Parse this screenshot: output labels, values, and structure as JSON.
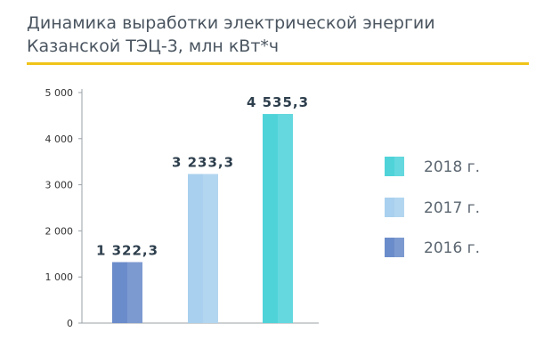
{
  "chart_data": {
    "type": "bar",
    "title": "Динамика выработки электрической энергии Казанской ТЭЦ-3, млн кВт*ч",
    "title_lines": [
      "Динамика выработки электрической энергии",
      "Казанской ТЭЦ-3, млн кВт*ч"
    ],
    "categories": [
      "2016 г.",
      "2017 г.",
      "2018 г."
    ],
    "values": [
      1322.3,
      3233.3,
      4535.3
    ],
    "value_labels": [
      "1 322,3",
      "3 233,3",
      "4 535,3"
    ],
    "colors": [
      "#6b8cca",
      "#a9d0ee",
      "#4fd3d9"
    ],
    "ylim": [
      0,
      5000
    ],
    "yticks": [
      0,
      1000,
      2000,
      3000,
      4000,
      5000
    ],
    "ytick_labels": [
      "0",
      "1 000",
      "2 000",
      "3 000",
      "4 000",
      "5 000"
    ],
    "grid": false,
    "legend": {
      "placement": "right",
      "order": [
        "2018 г.",
        "2017 г.",
        "2016 г."
      ]
    }
  },
  "colors": {
    "accent_rule": "#f0c419",
    "title_text": "#4a5560"
  }
}
